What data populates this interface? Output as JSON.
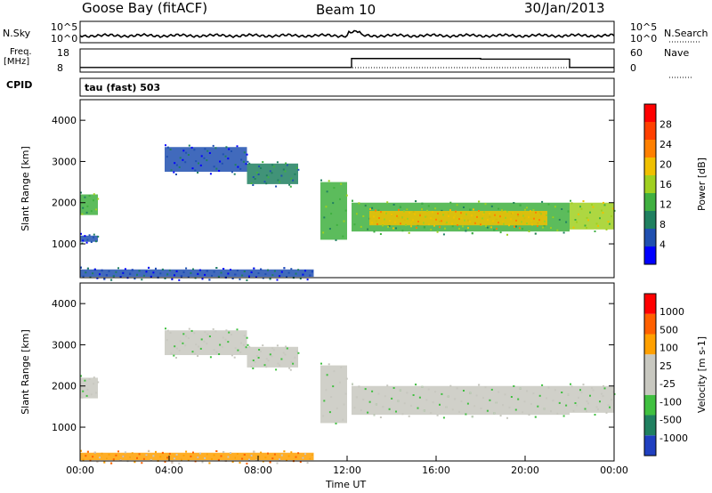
{
  "header": {
    "station": "Goose Bay (fitACF)",
    "beam": "Beam 10",
    "date": "30/Jan/2013"
  },
  "panels": {
    "nsky_label": "N.Sky",
    "nsky_ticks": [
      "10^5",
      "10^0"
    ],
    "nsearch_label": "N.Search",
    "nsearch_ticks": [
      "10^5",
      "10^0"
    ],
    "freq_label": "Freq.",
    "freq_unit": "[MHz]",
    "freq_ticks": [
      "18",
      "8"
    ],
    "nave_label": "Nave",
    "nave_ticks": [
      "60",
      "0"
    ],
    "cpid_label": "CPID",
    "cpid_value": "tau (fast) 503"
  },
  "chart_data": [
    {
      "type": "heatmap",
      "name": "power",
      "ylabel": "Slant Range [km]",
      "yticks": [
        "4000",
        "3000",
        "2000",
        "1000"
      ],
      "ylim": [
        180,
        4500
      ],
      "colorbar_label": "Power [dB]",
      "colorbar_ticks": [
        "28",
        "24",
        "20",
        "16",
        "12",
        "8",
        "4"
      ],
      "colors": [
        "#0000ff",
        "#2050b0",
        "#208060",
        "#40b040",
        "#a0d020",
        "#f0c000",
        "#ff8000",
        "#ff4000",
        "#ff0000"
      ],
      "regions": [
        {
          "t0": 0.0,
          "t1": 0.8,
          "r0": 1700,
          "r1": 2200,
          "level": 3
        },
        {
          "t0": 0.0,
          "t1": 0.8,
          "r0": 1050,
          "r1": 1200,
          "level": 1
        },
        {
          "t0": 3.8,
          "t1": 7.5,
          "r0": 2750,
          "r1": 3350,
          "level": 1
        },
        {
          "t0": 7.5,
          "t1": 9.8,
          "r0": 2450,
          "r1": 2950,
          "level": 2
        },
        {
          "t0": 10.8,
          "t1": 12.0,
          "r0": 1100,
          "r1": 2500,
          "level": 3
        },
        {
          "t0": 12.2,
          "t1": 22.0,
          "r0": 1300,
          "r1": 2000,
          "level": 3
        },
        {
          "t0": 13.0,
          "t1": 21.0,
          "r0": 1450,
          "r1": 1800,
          "level": 5
        },
        {
          "t0": 22.0,
          "t1": 24.0,
          "r0": 1350,
          "r1": 2000,
          "level": 4
        },
        {
          "t0": 0.0,
          "t1": 10.5,
          "r0": 200,
          "r1": 380,
          "level": 1
        }
      ]
    },
    {
      "type": "heatmap",
      "name": "velocity",
      "ylabel": "Slant Range [km]",
      "yticks": [
        "4000",
        "3000",
        "2000",
        "1000"
      ],
      "ylim": [
        180,
        4500
      ],
      "colorbar_label": "Velocity [m s-1]",
      "colorbar_ticks": [
        "1000",
        "500",
        "100",
        "25",
        "-25",
        "-100",
        "-500",
        "-1000"
      ],
      "colors": [
        "#2040c0",
        "#208060",
        "#40c040",
        "#c8c8c0",
        "#c8c8c0",
        "#ffa000",
        "#ff6000",
        "#ff0000"
      ],
      "regions": [
        {
          "t0": 0.0,
          "t1": 0.8,
          "r0": 1700,
          "r1": 2200,
          "level": 3
        },
        {
          "t0": 3.8,
          "t1": 7.5,
          "r0": 2750,
          "r1": 3350,
          "level": 3
        },
        {
          "t0": 7.5,
          "t1": 9.8,
          "r0": 2450,
          "r1": 2950,
          "level": 3
        },
        {
          "t0": 10.8,
          "t1": 12.0,
          "r0": 1100,
          "r1": 2500,
          "level": 3
        },
        {
          "t0": 12.2,
          "t1": 22.0,
          "r0": 1300,
          "r1": 2000,
          "level": 3
        },
        {
          "t0": 22.0,
          "t1": 24.0,
          "r0": 1350,
          "r1": 2000,
          "level": 3
        },
        {
          "t0": 0.0,
          "t1": 10.5,
          "r0": 200,
          "r1": 380,
          "level": 5
        }
      ]
    }
  ],
  "xaxis": {
    "label": "Time UT",
    "ticks": [
      "00:00",
      "04:00",
      "08:00",
      "12:00",
      "16:00",
      "20:00",
      "00:00"
    ],
    "range": [
      0,
      24
    ]
  }
}
